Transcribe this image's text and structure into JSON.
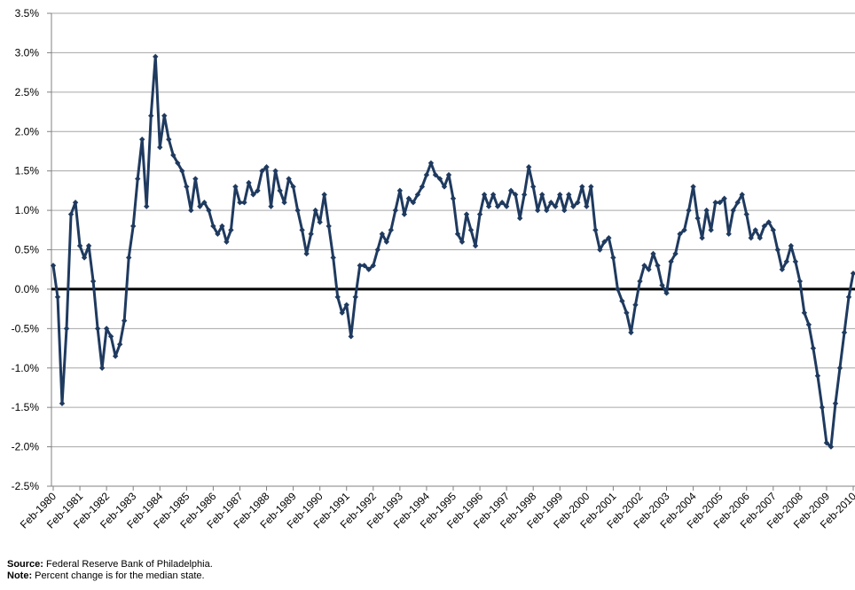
{
  "chart_data": {
    "type": "line",
    "categories": [
      "Feb-1980",
      null,
      null,
      null,
      null,
      null,
      "Feb-1981",
      null,
      null,
      null,
      null,
      null,
      "Feb-1982",
      null,
      null,
      null,
      null,
      null,
      "Feb-1983",
      null,
      null,
      null,
      null,
      null,
      "Feb-1984",
      null,
      null,
      null,
      null,
      null,
      "Feb-1985",
      null,
      null,
      null,
      null,
      null,
      "Feb-1986",
      null,
      null,
      null,
      null,
      null,
      "Feb-1987",
      null,
      null,
      null,
      null,
      null,
      "Feb-1988",
      null,
      null,
      null,
      null,
      null,
      "Feb-1989",
      null,
      null,
      null,
      null,
      null,
      "Feb-1990",
      null,
      null,
      null,
      null,
      null,
      "Feb-1991",
      null,
      null,
      null,
      null,
      null,
      "Feb-1992",
      null,
      null,
      null,
      null,
      null,
      "Feb-1993",
      null,
      null,
      null,
      null,
      null,
      "Feb-1994",
      null,
      null,
      null,
      null,
      null,
      "Feb-1995",
      null,
      null,
      null,
      null,
      null,
      "Feb-1996",
      null,
      null,
      null,
      null,
      null,
      "Feb-1997",
      null,
      null,
      null,
      null,
      null,
      "Feb-1998",
      null,
      null,
      null,
      null,
      null,
      "Feb-1999",
      null,
      null,
      null,
      null,
      null,
      "Feb-2000",
      null,
      null,
      null,
      null,
      null,
      "Feb-2001",
      null,
      null,
      null,
      null,
      null,
      "Feb-2002",
      null,
      null,
      null,
      null,
      null,
      "Feb-2003",
      null,
      null,
      null,
      null,
      null,
      "Feb-2004",
      null,
      null,
      null,
      null,
      null,
      "Feb-2005",
      null,
      null,
      null,
      null,
      null,
      "Feb-2006",
      null,
      null,
      null,
      null,
      null,
      "Feb-2007",
      null,
      null,
      null,
      null,
      null,
      "Feb-2008",
      null,
      null,
      null,
      null,
      null,
      "Feb-2009",
      null,
      null,
      null,
      null,
      null,
      "Feb-2010"
    ],
    "series": [
      {
        "name": "Percent change",
        "color": "#1f3a5f",
        "values": [
          0.3,
          -0.1,
          -1.45,
          -0.5,
          0.95,
          1.1,
          0.55,
          0.4,
          0.55,
          0.1,
          -0.5,
          -1.0,
          -0.5,
          -0.6,
          -0.85,
          -0.7,
          -0.4,
          0.4,
          0.8,
          1.4,
          1.9,
          1.05,
          2.2,
          2.95,
          1.8,
          2.2,
          1.9,
          1.7,
          1.6,
          1.5,
          1.3,
          1.0,
          1.4,
          1.05,
          1.1,
          1.0,
          0.8,
          0.7,
          0.8,
          0.6,
          0.75,
          1.3,
          1.1,
          1.1,
          1.35,
          1.2,
          1.25,
          1.5,
          1.55,
          1.05,
          1.5,
          1.25,
          1.1,
          1.4,
          1.3,
          1.0,
          0.75,
          0.45,
          0.7,
          1.0,
          0.85,
          1.2,
          0.8,
          0.4,
          -0.1,
          -0.3,
          -0.2,
          -0.6,
          -0.1,
          0.3,
          0.3,
          0.25,
          0.3,
          0.5,
          0.7,
          0.6,
          0.75,
          1.0,
          1.25,
          0.95,
          1.15,
          1.1,
          1.2,
          1.3,
          1.45,
          1.6,
          1.45,
          1.4,
          1.3,
          1.45,
          1.15,
          0.7,
          0.6,
          0.95,
          0.75,
          0.55,
          0.95,
          1.2,
          1.05,
          1.2,
          1.05,
          1.1,
          1.05,
          1.25,
          1.2,
          0.9,
          1.2,
          1.55,
          1.3,
          1.0,
          1.2,
          1.0,
          1.1,
          1.05,
          1.2,
          1.0,
          1.2,
          1.05,
          1.1,
          1.3,
          1.05,
          1.3,
          0.75,
          0.5,
          0.6,
          0.65,
          0.4,
          0.0,
          -0.15,
          -0.3,
          -0.55,
          -0.2,
          0.1,
          0.3,
          0.25,
          0.45,
          0.3,
          0.05,
          -0.05,
          0.35,
          0.45,
          0.7,
          0.75,
          1.0,
          1.3,
          0.9,
          0.65,
          1.0,
          0.75,
          1.1,
          1.1,
          1.15,
          0.7,
          1.0,
          1.1,
          1.2,
          0.95,
          0.65,
          0.75,
          0.65,
          0.8,
          0.85,
          0.75,
          0.5,
          0.25,
          0.35,
          0.55,
          0.35,
          0.1,
          -0.3,
          -0.45,
          -0.75,
          -1.1,
          -1.5,
          -1.95,
          -2.0,
          -1.45,
          -1.0,
          -0.55,
          -0.1,
          0.2
        ]
      }
    ],
    "ylim": [
      -2.5,
      3.5
    ],
    "yticks": [
      {
        "value": 3.5,
        "label": "3.5%"
      },
      {
        "value": 3.0,
        "label": "3.0%"
      },
      {
        "value": 2.5,
        "label": "2.5%"
      },
      {
        "value": 2.0,
        "label": "2.0%"
      },
      {
        "value": 1.5,
        "label": "1.5%"
      },
      {
        "value": 1.0,
        "label": "1.0%"
      },
      {
        "value": 0.5,
        "label": "0.5%"
      },
      {
        "value": 0,
        "label": "0.0%"
      },
      {
        "value": -0.5,
        "label": "-0.5%"
      },
      {
        "value": -1.0,
        "label": "-1.0%"
      },
      {
        "value": -1.5,
        "label": "-1.5%"
      },
      {
        "value": -2.0,
        "label": "-2.0%"
      },
      {
        "value": -2.5,
        "label": "-2.5%"
      }
    ],
    "grid": true,
    "footnotes": [
      {
        "label": "Source:",
        "text": "Federal Reserve Bank of Philadelphia."
      },
      {
        "label": "Note:",
        "text": "Percent change is for the median state."
      }
    ]
  }
}
